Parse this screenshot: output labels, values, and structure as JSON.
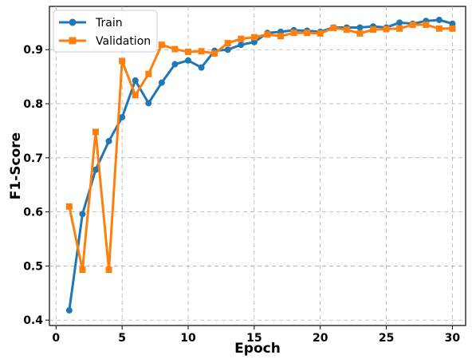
{
  "chart_data": {
    "type": "line",
    "xlabel": "Epoch",
    "ylabel": "F1-Score",
    "xlim": [
      -0.5,
      31.0
    ],
    "ylim": [
      0.39,
      0.98
    ],
    "xticks": [
      0,
      5,
      10,
      15,
      20,
      25,
      30
    ],
    "yticks": [
      0.4,
      0.5,
      0.6,
      0.7,
      0.8,
      0.9
    ],
    "grid": true,
    "legend_position": "top-left",
    "x": [
      1,
      2,
      3,
      4,
      5,
      6,
      7,
      8,
      9,
      10,
      11,
      12,
      13,
      14,
      15,
      16,
      17,
      18,
      19,
      20,
      21,
      22,
      23,
      24,
      25,
      26,
      27,
      28,
      29,
      30
    ],
    "series": [
      {
        "name": "Train",
        "color": "#1f77b4",
        "marker": "circle",
        "values": [
          0.418,
          0.596,
          0.678,
          0.731,
          0.775,
          0.843,
          0.801,
          0.839,
          0.873,
          0.88,
          0.867,
          0.898,
          0.9,
          0.909,
          0.914,
          0.931,
          0.933,
          0.936,
          0.935,
          0.933,
          0.941,
          0.941,
          0.941,
          0.943,
          0.941,
          0.95,
          0.948,
          0.953,
          0.955,
          0.948
        ]
      },
      {
        "name": "Validation",
        "color": "#ff7f0e",
        "marker": "square",
        "values": [
          0.61,
          0.493,
          0.748,
          0.493,
          0.879,
          0.816,
          0.855,
          0.909,
          0.901,
          0.896,
          0.897,
          0.893,
          0.912,
          0.92,
          0.923,
          0.928,
          0.925,
          0.931,
          0.931,
          0.93,
          0.94,
          0.937,
          0.93,
          0.937,
          0.938,
          0.939,
          0.946,
          0.946,
          0.939,
          0.939
        ]
      }
    ]
  }
}
